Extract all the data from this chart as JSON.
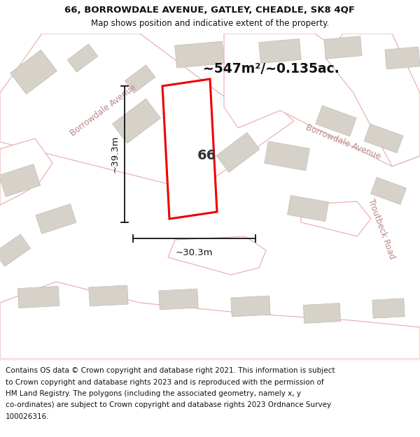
{
  "title_line1": "66, BORROWDALE AVENUE, GATLEY, CHEADLE, SK8 4QF",
  "title_line2": "Map shows position and indicative extent of the property.",
  "area_text": "~547m²/~0.135ac.",
  "dim_width": "~30.3m",
  "dim_height": "~39.3m",
  "label_66": "66",
  "footer_lines": [
    "Contains OS data © Crown copyright and database right 2021. This information is subject",
    "to Crown copyright and database rights 2023 and is reproduced with the permission of",
    "HM Land Registry. The polygons (including the associated geometry, namely x, y",
    "co-ordinates) are subject to Crown copyright and database rights 2023 Ordnance Survey",
    "100026316."
  ],
  "bg_color": "#eeece8",
  "road_color": "#ffffff",
  "building_color": "#d6d2ca",
  "property_fill": "#ffffff",
  "property_outline": "#ee0000",
  "road_line_color": "#e8aaaa",
  "street_label_color": "#bb8888",
  "title_bg": "#ffffff",
  "footer_bg": "#ffffff",
  "dim_line_color": "#111111",
  "label_color": "#222222",
  "area_color": "#111111"
}
